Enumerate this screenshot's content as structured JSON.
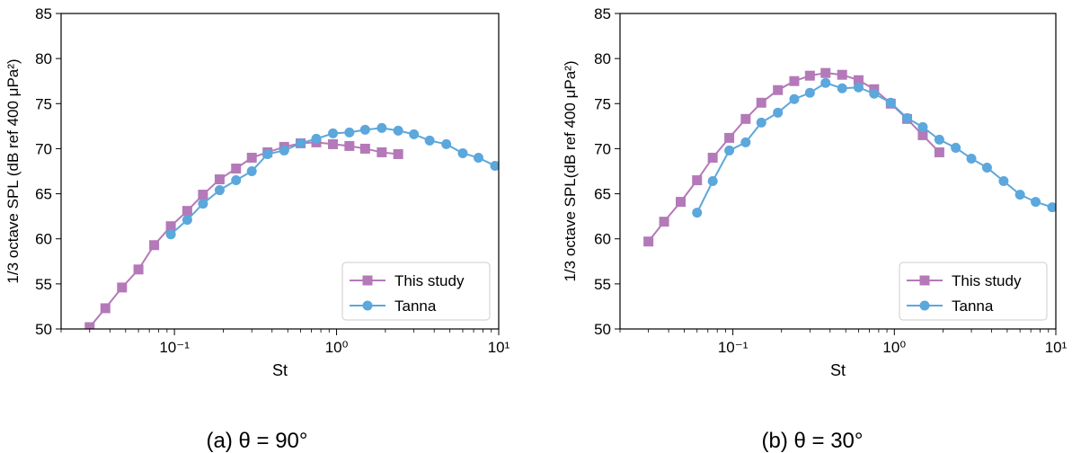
{
  "chart_data": [
    {
      "type": "line",
      "xscale": "log",
      "xlabel": "St",
      "ylabel": "1/3 octave SPL (dB ref 400 μPa²)",
      "xlim": [
        0.02,
        10
      ],
      "ylim": [
        50,
        85
      ],
      "yticks": [
        "50",
        "55",
        "60",
        "65",
        "70",
        "75",
        "80",
        "85"
      ],
      "xticks": [
        "10⁻¹",
        "10⁰",
        "10¹"
      ],
      "legend_position": "lower-right",
      "caption": "(a) θ = 90°",
      "series": [
        {
          "name": "This study",
          "marker": "square",
          "color": "#b479b8",
          "points": [
            [
              0.03,
              50.2
            ],
            [
              0.0375,
              52.3
            ],
            [
              0.0475,
              54.6
            ],
            [
              0.06,
              56.6
            ],
            [
              0.075,
              59.3
            ],
            [
              0.095,
              61.4
            ],
            [
              0.12,
              63.1
            ],
            [
              0.15,
              64.9
            ],
            [
              0.19,
              66.6
            ],
            [
              0.24,
              67.8
            ],
            [
              0.3,
              69.0
            ],
            [
              0.375,
              69.6
            ],
            [
              0.475,
              70.2
            ],
            [
              0.6,
              70.6
            ],
            [
              0.75,
              70.7
            ],
            [
              0.95,
              70.5
            ],
            [
              1.2,
              70.3
            ],
            [
              1.5,
              70.0
            ],
            [
              1.9,
              69.6
            ],
            [
              2.4,
              69.4
            ]
          ]
        },
        {
          "name": "Tanna",
          "marker": "circle",
          "color": "#5ca7dc",
          "points": [
            [
              0.095,
              60.5
            ],
            [
              0.12,
              62.1
            ],
            [
              0.15,
              63.9
            ],
            [
              0.19,
              65.4
            ],
            [
              0.24,
              66.5
            ],
            [
              0.3,
              67.5
            ],
            [
              0.375,
              69.4
            ],
            [
              0.475,
              69.8
            ],
            [
              0.6,
              70.6
            ],
            [
              0.75,
              71.1
            ],
            [
              0.95,
              71.7
            ],
            [
              1.2,
              71.8
            ],
            [
              1.5,
              72.1
            ],
            [
              1.9,
              72.3
            ],
            [
              2.4,
              72.0
            ],
            [
              3.0,
              71.6
            ],
            [
              3.75,
              70.9
            ],
            [
              4.75,
              70.5
            ],
            [
              6.0,
              69.5
            ],
            [
              7.5,
              69.0
            ],
            [
              9.5,
              68.1
            ]
          ]
        }
      ]
    },
    {
      "type": "line",
      "xscale": "log",
      "xlabel": "St",
      "ylabel": "1/3 octave SPL(dB ref 400 μPa²)",
      "xlim": [
        0.02,
        10
      ],
      "ylim": [
        50,
        85
      ],
      "yticks": [
        "50",
        "55",
        "60",
        "65",
        "70",
        "75",
        "80",
        "85"
      ],
      "xticks": [
        "10⁻¹",
        "10⁰",
        "10¹"
      ],
      "legend_position": "lower-right",
      "caption": "(b) θ = 30°",
      "series": [
        {
          "name": "This study",
          "marker": "square",
          "color": "#b479b8",
          "points": [
            [
              0.03,
              59.7
            ],
            [
              0.0375,
              61.9
            ],
            [
              0.0475,
              64.1
            ],
            [
              0.06,
              66.5
            ],
            [
              0.075,
              69.0
            ],
            [
              0.095,
              71.2
            ],
            [
              0.12,
              73.3
            ],
            [
              0.15,
              75.1
            ],
            [
              0.19,
              76.5
            ],
            [
              0.24,
              77.5
            ],
            [
              0.3,
              78.1
            ],
            [
              0.375,
              78.4
            ],
            [
              0.475,
              78.2
            ],
            [
              0.6,
              77.6
            ],
            [
              0.75,
              76.6
            ],
            [
              0.95,
              75.0
            ],
            [
              1.2,
              73.3
            ],
            [
              1.5,
              71.5
            ],
            [
              1.9,
              69.6
            ]
          ]
        },
        {
          "name": "Tanna",
          "marker": "circle",
          "color": "#5ca7dc",
          "points": [
            [
              0.06,
              62.9
            ],
            [
              0.075,
              66.4
            ],
            [
              0.095,
              69.8
            ],
            [
              0.12,
              70.7
            ],
            [
              0.15,
              72.9
            ],
            [
              0.19,
              74.0
            ],
            [
              0.24,
              75.5
            ],
            [
              0.3,
              76.2
            ],
            [
              0.375,
              77.3
            ],
            [
              0.475,
              76.7
            ],
            [
              0.6,
              76.8
            ],
            [
              0.75,
              76.1
            ],
            [
              0.95,
              75.1
            ],
            [
              1.2,
              73.4
            ],
            [
              1.5,
              72.4
            ],
            [
              1.9,
              71.0
            ],
            [
              2.4,
              70.1
            ],
            [
              3.0,
              68.9
            ],
            [
              3.75,
              67.9
            ],
            [
              4.75,
              66.4
            ],
            [
              6.0,
              64.9
            ],
            [
              7.5,
              64.1
            ],
            [
              9.5,
              63.5
            ]
          ]
        }
      ]
    }
  ]
}
